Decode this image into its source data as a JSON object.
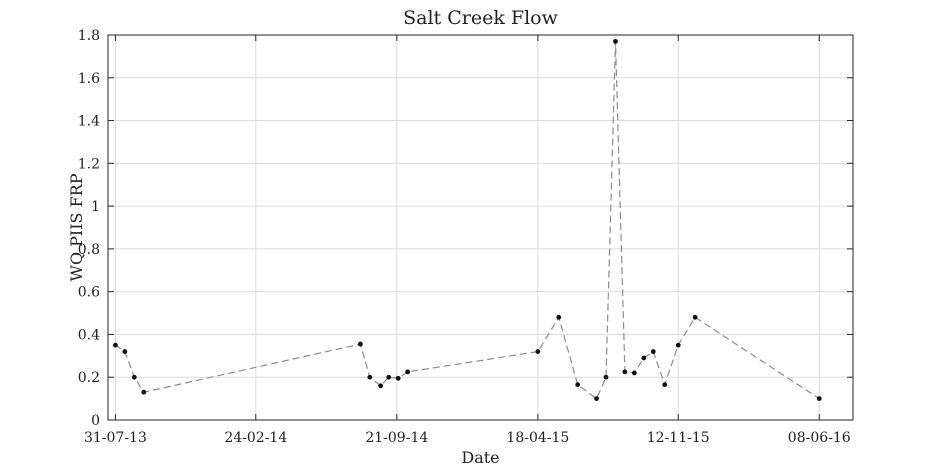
{
  "chart_data": {
    "type": "line",
    "title": "Salt Creek Flow",
    "xlabel": "Date",
    "ylabel": "WQ PIIS FRP",
    "x_tick_labels": [
      "31-07-13",
      "24-02-14",
      "21-09-14",
      "18-04-15",
      "12-11-15",
      "08-06-16"
    ],
    "x_ticks": [
      "2013-07-31",
      "2014-02-24",
      "2014-09-21",
      "2015-04-18",
      "2015-11-12",
      "2016-06-08"
    ],
    "xlim": [
      "2013-07-20",
      "2016-07-28"
    ],
    "y_tick_labels": [
      "0",
      "0.2",
      "0.4",
      "0.6",
      "0.8",
      "1",
      "1.2",
      "1.4",
      "1.6",
      "1.8"
    ],
    "yticks": [
      0,
      0.2,
      0.4,
      0.6,
      0.8,
      1.0,
      1.2,
      1.4,
      1.6,
      1.8
    ],
    "ylim": [
      0,
      1.8
    ],
    "grid": true,
    "series": [
      {
        "color": "#8c8c8c",
        "marker_color": "#111111",
        "line_style": "dashed",
        "points": [
          {
            "x": "2013-07-31",
            "y": 0.35
          },
          {
            "x": "2013-08-14",
            "y": 0.32
          },
          {
            "x": "2013-08-28",
            "y": 0.2
          },
          {
            "x": "2013-09-11",
            "y": 0.13
          },
          {
            "x": "2014-07-29",
            "y": 0.355
          },
          {
            "x": "2014-08-12",
            "y": 0.2
          },
          {
            "x": "2014-08-28",
            "y": 0.16
          },
          {
            "x": "2014-09-09",
            "y": 0.2
          },
          {
            "x": "2014-09-23",
            "y": 0.195
          },
          {
            "x": "2014-10-07",
            "y": 0.225
          },
          {
            "x": "2015-04-18",
            "y": 0.32
          },
          {
            "x": "2015-05-19",
            "y": 0.48
          },
          {
            "x": "2015-06-16",
            "y": 0.165
          },
          {
            "x": "2015-07-14",
            "y": 0.1
          },
          {
            "x": "2015-07-28",
            "y": 0.2
          },
          {
            "x": "2015-08-11",
            "y": 1.77
          },
          {
            "x": "2015-08-25",
            "y": 0.225
          },
          {
            "x": "2015-09-08",
            "y": 0.22
          },
          {
            "x": "2015-09-22",
            "y": 0.29
          },
          {
            "x": "2015-10-06",
            "y": 0.32
          },
          {
            "x": "2015-10-23",
            "y": 0.165
          },
          {
            "x": "2015-11-12",
            "y": 0.35
          },
          {
            "x": "2015-12-07",
            "y": 0.48
          },
          {
            "x": "2016-06-08",
            "y": 0.1
          }
        ]
      }
    ]
  }
}
